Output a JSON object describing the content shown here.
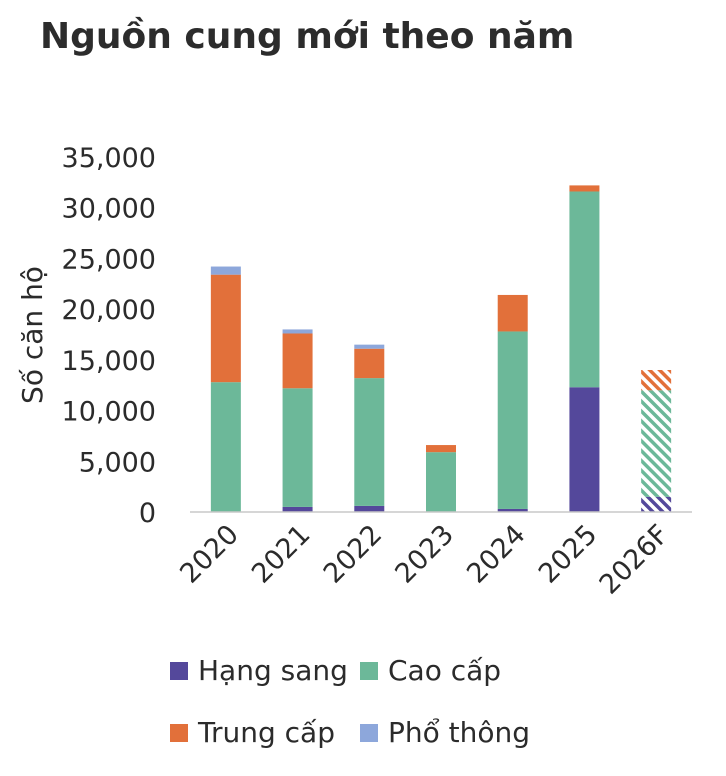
{
  "chart_data": {
    "type": "bar",
    "stacked": true,
    "title": "Nguồn cung mới theo năm",
    "xlabel": "",
    "ylabel": "Số căn hộ",
    "ylim": [
      0,
      35000
    ],
    "yticks": [
      0,
      5000,
      10000,
      15000,
      20000,
      25000,
      30000,
      35000
    ],
    "ytick_labels": [
      "0",
      "5,000",
      "10,000",
      "15,000",
      "20,000",
      "25,000",
      "30,000",
      "35,000"
    ],
    "categories": [
      "2020",
      "2021",
      "2022",
      "2023",
      "2024",
      "2025",
      "2026F"
    ],
    "forecast_categories": [
      "2026F"
    ],
    "grid": false,
    "legend_position": "bottom",
    "series": [
      {
        "name": "Hạng sang",
        "color": "#54489b",
        "values": [
          0,
          500,
          600,
          0,
          300,
          12300,
          1500
        ]
      },
      {
        "name": "Cao cấp",
        "color": "#6cb899",
        "values": [
          12800,
          11700,
          12600,
          5900,
          17500,
          19300,
          10500
        ]
      },
      {
        "name": "Trung cấp",
        "color": "#e2703a",
        "values": [
          10600,
          5400,
          2900,
          700,
          3600,
          600,
          2000
        ]
      },
      {
        "name": "Phổ thông",
        "color": "#8da7db",
        "values": [
          800,
          400,
          400,
          0,
          0,
          0,
          0
        ]
      }
    ]
  }
}
